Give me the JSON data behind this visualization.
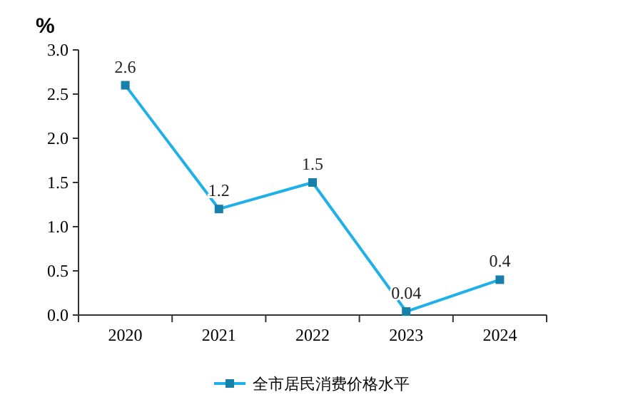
{
  "chart_data": {
    "type": "line",
    "ylabel": "%",
    "categories": [
      "2020",
      "2021",
      "2022",
      "2023",
      "2024"
    ],
    "series": [
      {
        "name": "全市居民消费价格水平",
        "color": "#1fb0ea",
        "values": [
          2.6,
          1.2,
          1.5,
          0.04,
          0.4
        ]
      }
    ],
    "ylim": [
      0,
      3
    ],
    "yticks": [
      {
        "value": 0,
        "label": "0.0"
      },
      {
        "value": 0.5,
        "label": "0.5"
      },
      {
        "value": 1,
        "label": "1.0"
      },
      {
        "value": 1.5,
        "label": "1.5"
      },
      {
        "value": 2,
        "label": "2.0"
      },
      {
        "value": 2.5,
        "label": "2.5"
      },
      {
        "value": 3,
        "label": "3.0"
      }
    ],
    "grid": false,
    "legend": "bottom",
    "marker": "square",
    "line_style": "solid",
    "data_labels": true
  }
}
